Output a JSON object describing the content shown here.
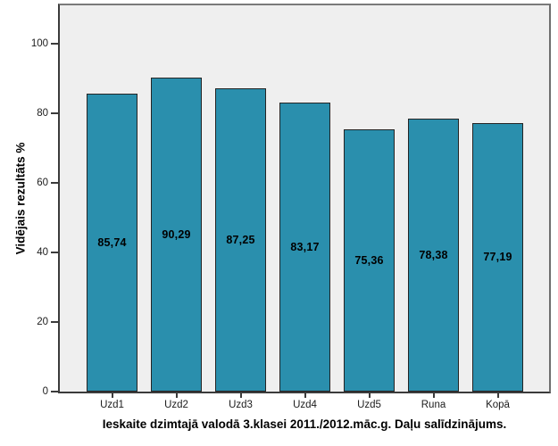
{
  "figure": {
    "colors": {
      "bar_fill": "#2a8fad",
      "bar_border": "#242424",
      "plot_background": "#efefef",
      "frame_light_gray": "#7a7a7a",
      "axis_dark_gray": "#3b3b3b",
      "text": "#000000",
      "page_background": "#ffffff"
    }
  },
  "chart_data": {
    "type": "bar",
    "categories": [
      "Uzd1",
      "Uzd2",
      "Uzd3",
      "Uzd4",
      "Uzd5",
      "Runa",
      "Kopā"
    ],
    "values": [
      85.74,
      90.29,
      87.25,
      83.17,
      75.36,
      78.38,
      77.19
    ],
    "value_labels": [
      "85,74",
      "90,29",
      "87,25",
      "83,17",
      "75,36",
      "78,38",
      "77,19"
    ],
    "title": "Ieskaite dzimtajā valodā 3.klasei 2011./2012.māc.g. Daļu salīdzinājums.",
    "xlabel": "Ieskaite dzimtajā valodā 3.klasei 2011./2012.māc.g. Daļu salīdzinājums.",
    "ylabel": "Vidējais rezultāts %",
    "yticks": [
      0,
      20,
      40,
      60,
      80,
      100
    ],
    "ylim": [
      0,
      111
    ],
    "grid": false,
    "legend": false,
    "value_label_position": "center-of-bar",
    "decimal_separator": ","
  }
}
